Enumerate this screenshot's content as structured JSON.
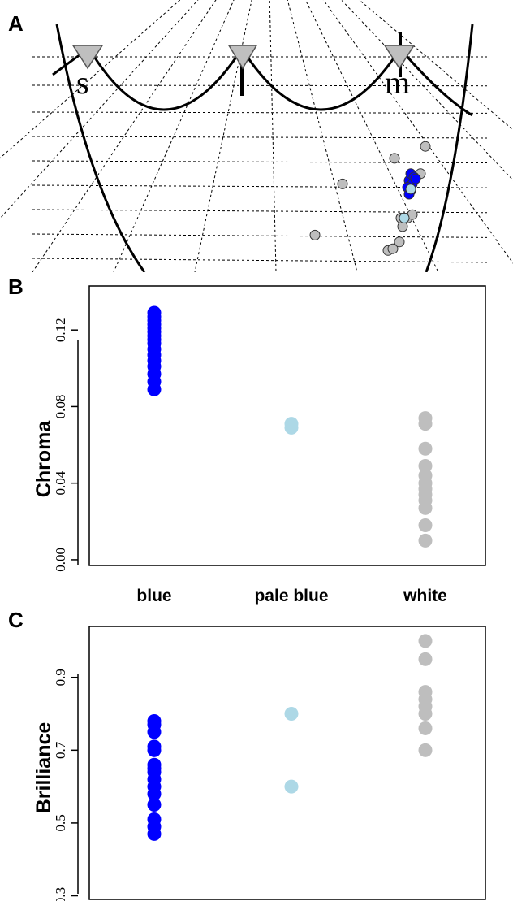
{
  "colors": {
    "blue": "#0000ff",
    "pale_blue": "#add8e6",
    "white_group": "#bebebe",
    "point_outline": "#333333",
    "receptor_marker": "#bfbfbf"
  },
  "chart_data": [
    {
      "panel": "A",
      "type": "scatter",
      "title": "",
      "receptor_labels": [
        "s",
        "l",
        "m"
      ],
      "points_approx": {
        "blue": [
          [
            0.02,
            0.18
          ],
          [
            0.03,
            0.22
          ],
          [
            0.05,
            0.2
          ],
          [
            0.04,
            0.16
          ],
          [
            0.01,
            0.14
          ],
          [
            0.06,
            0.19
          ],
          [
            0.03,
            0.12
          ],
          [
            0.02,
            0.1
          ]
        ],
        "pale_blue": [
          [
            0.03,
            0.13
          ],
          [
            -0.01,
            -0.04
          ]
        ],
        "white": [
          [
            0.12,
            0.38
          ],
          [
            -0.07,
            0.31
          ],
          [
            0.09,
            0.22
          ],
          [
            -0.39,
            0.16
          ],
          [
            -0.56,
            -0.14
          ],
          [
            -0.02,
            -0.09
          ],
          [
            -0.03,
            -0.04
          ],
          [
            0.01,
            -0.04
          ],
          [
            0.04,
            -0.02
          ],
          [
            -0.11,
            -0.23
          ],
          [
            -0.08,
            -0.22
          ],
          [
            -0.04,
            -0.18
          ]
        ]
      }
    },
    {
      "panel": "B",
      "type": "scatter",
      "title": "",
      "xlabel": "",
      "ylabel": "Chroma",
      "categories": [
        "blue",
        "pale blue",
        "white"
      ],
      "ylim": [
        -0.003,
        0.143
      ],
      "yticks": [
        "0.00",
        "0.04",
        "0.08",
        "0.12"
      ],
      "series": [
        {
          "category": "blue",
          "values": [
            0.089,
            0.093,
            0.097,
            0.101,
            0.104,
            0.107,
            0.11,
            0.113,
            0.115,
            0.117,
            0.119,
            0.121,
            0.123,
            0.125,
            0.127,
            0.129
          ]
        },
        {
          "category": "pale blue",
          "values": [
            0.069,
            0.071
          ]
        },
        {
          "category": "white",
          "values": [
            0.01,
            0.018,
            0.027,
            0.031,
            0.034,
            0.037,
            0.04,
            0.044,
            0.049,
            0.058,
            0.071,
            0.074
          ]
        }
      ]
    },
    {
      "panel": "C",
      "type": "scatter",
      "title": "",
      "xlabel": "",
      "ylabel": "Brilliance",
      "categories": [
        "blue",
        "pale blue",
        "white"
      ],
      "ylim": [
        0.29,
        1.04
      ],
      "yticks": [
        "0.3",
        "0.5",
        "0.7",
        "0.9"
      ],
      "series": [
        {
          "category": "blue",
          "values": [
            0.47,
            0.49,
            0.51,
            0.55,
            0.58,
            0.6,
            0.62,
            0.64,
            0.65,
            0.66,
            0.7,
            0.71,
            0.75,
            0.77,
            0.78
          ]
        },
        {
          "category": "pale blue",
          "values": [
            0.6,
            0.8
          ]
        },
        {
          "category": "white",
          "values": [
            0.7,
            0.76,
            0.8,
            0.82,
            0.84,
            0.86,
            0.95,
            1.0
          ]
        }
      ]
    }
  ]
}
